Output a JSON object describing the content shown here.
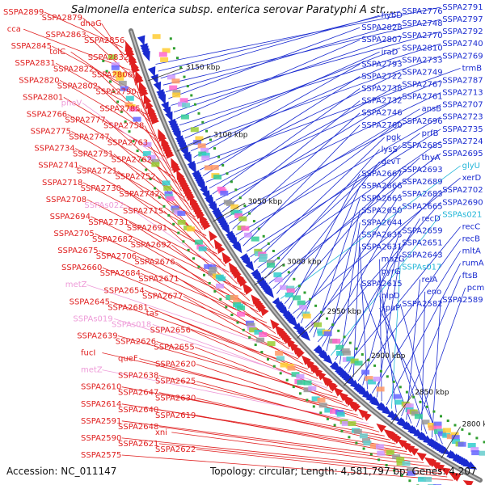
{
  "title": "Salmonella enterica subsp. enterica serovar Paratyphi A str....",
  "footer": {
    "accession": "Accession: NC_011147",
    "info": "Topology: circular; Length: 4,581,797 bp; Genes: 4,207"
  },
  "colors": {
    "forward": "#e02020",
    "reverse": "#1a2bd0",
    "rna": "#ee9bd8",
    "rna_rev": "#22b6d8"
  },
  "scale_labels": [
    "3150 kbp",
    "3100 kbp",
    "3050 kbp",
    "3000 kbp",
    "2950 kbp",
    "2900 kbp",
    "2850 kbp",
    "2800 kbp"
  ],
  "left_labels": [
    {
      "text": "SSPA2899",
      "type": "fwd"
    },
    {
      "text": "SSPA2879",
      "type": "fwd"
    },
    {
      "text": "dnaG",
      "type": "fwd"
    },
    {
      "text": "cca",
      "type": "fwd"
    },
    {
      "text": "SSPA2863",
      "type": "fwd"
    },
    {
      "text": "SSPA2856",
      "type": "fwd"
    },
    {
      "text": "SSPA2845",
      "type": "fwd"
    },
    {
      "text": "tolC",
      "type": "fwd"
    },
    {
      "text": "SSPA2832",
      "type": "fwd"
    },
    {
      "text": "SSPA2831",
      "type": "fwd"
    },
    {
      "text": "SSPA2822",
      "type": "fwd"
    },
    {
      "text": "SSPA2806",
      "type": "fwd"
    },
    {
      "text": "SSPA2820",
      "type": "fwd"
    },
    {
      "text": "SSPA2802",
      "type": "fwd"
    },
    {
      "text": "SSPA2790",
      "type": "fwd"
    },
    {
      "text": "SSPA2801",
      "type": "fwd"
    },
    {
      "text": "pheV",
      "type": "rna"
    },
    {
      "text": "SSPA2785",
      "type": "fwd"
    },
    {
      "text": "SSPA2766",
      "type": "fwd"
    },
    {
      "text": "SSPA2777",
      "type": "fwd"
    },
    {
      "text": "SSPA2758",
      "type": "fwd"
    },
    {
      "text": "SSPA2775",
      "type": "fwd"
    },
    {
      "text": "SSPA2747",
      "type": "fwd"
    },
    {
      "text": "SSPA2763",
      "type": "fwd"
    },
    {
      "text": "SSPA2734",
      "type": "fwd"
    },
    {
      "text": "SSPA2751",
      "type": "fwd"
    },
    {
      "text": "SSPA2762",
      "type": "fwd"
    },
    {
      "text": "SSPA2741",
      "type": "fwd"
    },
    {
      "text": "SSPA2721",
      "type": "fwd"
    },
    {
      "text": "SSPA2752",
      "type": "fwd"
    },
    {
      "text": "SSPA2718",
      "type": "fwd"
    },
    {
      "text": "SSPA2730",
      "type": "fwd"
    },
    {
      "text": "SSPA2742",
      "type": "fwd"
    },
    {
      "text": "SSPA2708",
      "type": "fwd"
    },
    {
      "text": "SSPAs022",
      "type": "rna"
    },
    {
      "text": "SSPA2715",
      "type": "fwd"
    },
    {
      "text": "SSPA2694",
      "type": "fwd"
    },
    {
      "text": "SSPA2731",
      "type": "fwd"
    },
    {
      "text": "SSPA2691",
      "type": "fwd"
    },
    {
      "text": "SSPA2705",
      "type": "fwd"
    },
    {
      "text": "SSPA2682",
      "type": "fwd"
    },
    {
      "text": "SSPA2692",
      "type": "fwd"
    },
    {
      "text": "SSPA2675",
      "type": "fwd"
    },
    {
      "text": "SSPA2706",
      "type": "fwd"
    },
    {
      "text": "SSPA2676",
      "type": "fwd"
    },
    {
      "text": "SSPA2660",
      "type": "fwd"
    },
    {
      "text": "SSPA2684",
      "type": "fwd"
    },
    {
      "text": "SSPA2671",
      "type": "fwd"
    },
    {
      "text": "metZ",
      "type": "rna"
    },
    {
      "text": "SSPA2654",
      "type": "fwd"
    },
    {
      "text": "SSPA2677",
      "type": "fwd"
    },
    {
      "text": "SSPA2645",
      "type": "fwd"
    },
    {
      "text": "SSPA2681",
      "type": "fwd"
    },
    {
      "text": "tas",
      "type": "fwd"
    },
    {
      "text": "SSPAs019",
      "type": "rna"
    },
    {
      "text": "SSPAs018",
      "type": "rna"
    },
    {
      "text": "SSPA2656",
      "type": "fwd"
    },
    {
      "text": "SSPA2639",
      "type": "fwd"
    },
    {
      "text": "SSPA2626",
      "type": "fwd"
    },
    {
      "text": "SSPA2655",
      "type": "fwd"
    },
    {
      "text": "fucI",
      "type": "fwd"
    },
    {
      "text": "queF",
      "type": "fwd"
    },
    {
      "text": "SSPA2620",
      "type": "fwd"
    },
    {
      "text": "metZ",
      "type": "rna"
    },
    {
      "text": "SSPA2638",
      "type": "fwd"
    },
    {
      "text": "SSPA2625",
      "type": "fwd"
    },
    {
      "text": "SSPA2610",
      "type": "fwd"
    },
    {
      "text": "SSPA2647",
      "type": "fwd"
    },
    {
      "text": "SSPA2630",
      "type": "fwd"
    },
    {
      "text": "SSPA2614",
      "type": "fwd"
    },
    {
      "text": "SSPA2640",
      "type": "fwd"
    },
    {
      "text": "SSPA2619",
      "type": "fwd"
    },
    {
      "text": "SSPA2591",
      "type": "fwd"
    },
    {
      "text": "SSPA2648",
      "type": "fwd"
    },
    {
      "text": "xni",
      "type": "fwd"
    },
    {
      "text": "SSPA2590",
      "type": "fwd"
    },
    {
      "text": "SSPA2621",
      "type": "fwd"
    },
    {
      "text": "SSPA2622",
      "type": "fwd"
    },
    {
      "text": "SSPA2575",
      "type": "fwd"
    }
  ],
  "right_labels": [
    {
      "text": "SSPA2791",
      "type": "rev"
    },
    {
      "text": "SSPA2776",
      "type": "rev"
    },
    {
      "text": "hybD",
      "type": "rev"
    },
    {
      "text": "SSPA2797",
      "type": "rev"
    },
    {
      "text": "SSPA2748",
      "type": "rev"
    },
    {
      "text": "SSPA2828",
      "type": "rev"
    },
    {
      "text": "SSPA2792",
      "type": "rev"
    },
    {
      "text": "SSPA2770",
      "type": "rev"
    },
    {
      "text": "SSPA2807",
      "type": "rev"
    },
    {
      "text": "SSPA2740",
      "type": "rev"
    },
    {
      "text": "SSPA2810",
      "type": "rev"
    },
    {
      "text": "iraD",
      "type": "rev"
    },
    {
      "text": "SSPA2769",
      "type": "rev"
    },
    {
      "text": "SSPA2733",
      "type": "rev"
    },
    {
      "text": "SSPA2793",
      "type": "rev"
    },
    {
      "text": "trmB",
      "type": "rev"
    },
    {
      "text": "SSPA2749",
      "type": "rev"
    },
    {
      "text": "SSPA2722",
      "type": "rev"
    },
    {
      "text": "SSPA2787",
      "type": "rev"
    },
    {
      "text": "SSPA2767",
      "type": "rev"
    },
    {
      "text": "SSPA2738",
      "type": "rev"
    },
    {
      "text": "SSPA2713",
      "type": "rev"
    },
    {
      "text": "SSPA2761",
      "type": "rev"
    },
    {
      "text": "SSPA2732",
      "type": "rev"
    },
    {
      "text": "SSPA2707",
      "type": "rev"
    },
    {
      "text": "ansB",
      "type": "rev"
    },
    {
      "text": "SSPA2746",
      "type": "rev"
    },
    {
      "text": "SSPA2723",
      "type": "rev"
    },
    {
      "text": "SSPA2696",
      "type": "rev"
    },
    {
      "text": "SSPA2760",
      "type": "rev"
    },
    {
      "text": "SSPA2735",
      "type": "rev"
    },
    {
      "text": "prfB",
      "type": "rev"
    },
    {
      "text": "pgk",
      "type": "rev"
    },
    {
      "text": "SSPA2724",
      "type": "rev"
    },
    {
      "text": "SSPA2685",
      "type": "rev"
    },
    {
      "text": "lysS",
      "type": "rev"
    },
    {
      "text": "SSPA2695",
      "type": "rev"
    },
    {
      "text": "thyA",
      "type": "rev"
    },
    {
      "text": "gcvT",
      "type": "rev"
    },
    {
      "text": "glyU",
      "type": "rna_rev"
    },
    {
      "text": "SSPA2693",
      "type": "rev"
    },
    {
      "text": "SSPA2667",
      "type": "rev"
    },
    {
      "text": "xerD",
      "type": "rev"
    },
    {
      "text": "SSPA2689",
      "type": "rev"
    },
    {
      "text": "SSPA2666",
      "type": "rev"
    },
    {
      "text": "SSPA2702",
      "type": "rev"
    },
    {
      "text": "SSPA2683",
      "type": "rev"
    },
    {
      "text": "SSPA2663",
      "type": "rev"
    },
    {
      "text": "SSPA2690",
      "type": "rev"
    },
    {
      "text": "SSPA2665",
      "type": "rev"
    },
    {
      "text": "SSPA2650",
      "type": "rev"
    },
    {
      "text": "SSPAs021",
      "type": "rna_rev"
    },
    {
      "text": "recD",
      "type": "rev"
    },
    {
      "text": "SSPA2644",
      "type": "rev"
    },
    {
      "text": "recC",
      "type": "rev"
    },
    {
      "text": "SSPA2659",
      "type": "rev"
    },
    {
      "text": "SSPA2635",
      "type": "rev"
    },
    {
      "text": "recB",
      "type": "rev"
    },
    {
      "text": "SSPA2651",
      "type": "rev"
    },
    {
      "text": "SSPA2631",
      "type": "rev"
    },
    {
      "text": "mltA",
      "type": "rev"
    },
    {
      "text": "SSPA2643",
      "type": "rev"
    },
    {
      "text": "mazG",
      "type": "rev"
    },
    {
      "text": "rumA",
      "type": "rev"
    },
    {
      "text": "SSPAs017",
      "type": "rna_rev"
    },
    {
      "text": "pyrG",
      "type": "rev"
    },
    {
      "text": "ftsB",
      "type": "rev"
    },
    {
      "text": "relA",
      "type": "rev"
    },
    {
      "text": "SSPA2615",
      "type": "rev"
    },
    {
      "text": "pcm",
      "type": "rev"
    },
    {
      "text": "eno",
      "type": "rev"
    },
    {
      "text": "nlpD",
      "type": "rev"
    },
    {
      "text": "SSPA2589",
      "type": "rev"
    },
    {
      "text": "SSPA2582",
      "type": "rev"
    },
    {
      "text": "spaP",
      "type": "rev"
    }
  ]
}
